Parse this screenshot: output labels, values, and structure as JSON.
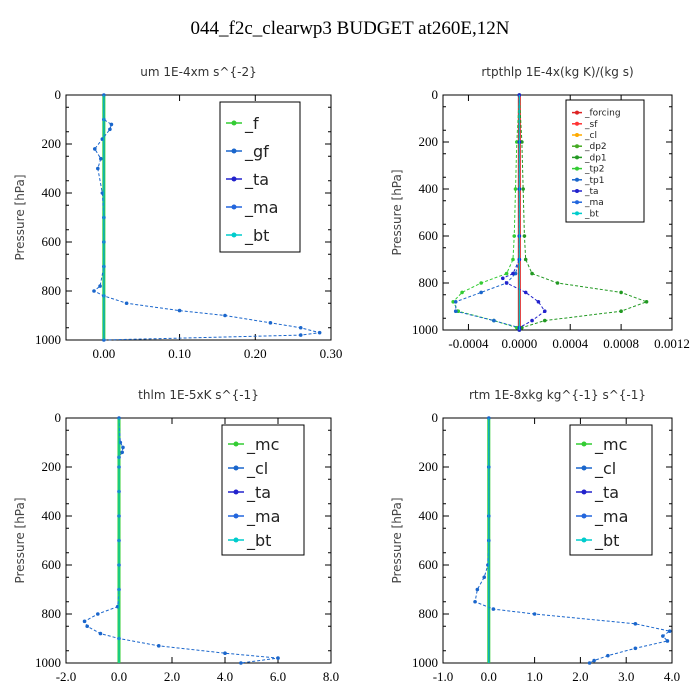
{
  "figure_title": "044_f2c_clearwp3  BUDGET at260E,12N",
  "chart_data": [
    {
      "type": "line",
      "title": "um  1E-4xm s^{-2}",
      "ylabel": "Pressure [hPa]",
      "xlim": [
        -0.05,
        0.3
      ],
      "ylim": [
        1000,
        0
      ],
      "xticks": [
        0.0,
        0.1,
        0.2,
        0.3
      ],
      "xtick_labels": [
        "0.00",
        "0.10",
        "0.20",
        "0.30"
      ],
      "yticks": [
        0,
        200,
        400,
        600,
        800,
        1000
      ],
      "ytick_labels": [
        "0",
        "200",
        "400",
        "600",
        "800",
        "1000"
      ],
      "legend": "top-right",
      "series": [
        {
          "name": "_f",
          "color": "#33cc33",
          "y": [
            0,
            100,
            200,
            300,
            400,
            500,
            600,
            700,
            800,
            900,
            1000
          ],
          "x": [
            0,
            0,
            0,
            0,
            0,
            0,
            0,
            0,
            0,
            0,
            0
          ]
        },
        {
          "name": "_gf",
          "color": "#1a66cc",
          "y": [
            0,
            100,
            120,
            140,
            180,
            220,
            260,
            300,
            400,
            500,
            600,
            700,
            780,
            800,
            820,
            850,
            880,
            900,
            930,
            950,
            970,
            980,
            1000
          ],
          "x": [
            0,
            0,
            0.01,
            0.008,
            -0.002,
            -0.012,
            -0.004,
            -0.008,
            -0.002,
            0,
            0,
            0,
            -0.005,
            -0.013,
            0.0,
            0.03,
            0.1,
            0.16,
            0.22,
            0.26,
            0.285,
            0.26,
            0.0
          ]
        },
        {
          "name": "_ta",
          "color": "#2222cc",
          "y": [
            0,
            100,
            200,
            300,
            400,
            500,
            600,
            700,
            800,
            900,
            1000
          ],
          "x": [
            0,
            0,
            0,
            0,
            0,
            0,
            0,
            0,
            0,
            0,
            0
          ]
        },
        {
          "name": "_ma",
          "color": "#2266dd",
          "y": [
            0,
            100,
            200,
            300,
            400,
            500,
            600,
            700,
            800,
            900,
            1000
          ],
          "x": [
            0,
            0,
            0,
            0,
            0,
            0,
            0,
            0,
            0,
            0,
            0
          ]
        },
        {
          "name": "_bt",
          "color": "#00cccc",
          "y": [
            0,
            100,
            200,
            300,
            400,
            500,
            600,
            700,
            800,
            900,
            1000
          ],
          "x": [
            0,
            0,
            0,
            0,
            0,
            0,
            0,
            0,
            0,
            0,
            0
          ]
        }
      ]
    },
    {
      "type": "line",
      "title": "rtpthlp  1E-4x(kg K)/(kg s)",
      "ylabel": "Pressure [hPa]",
      "xlim": [
        -0.0006,
        0.0012
      ],
      "ylim": [
        1000,
        0
      ],
      "xticks": [
        -0.0004,
        0.0,
        0.0004,
        0.0008,
        0.0012
      ],
      "xtick_labels": [
        "-0.0004",
        "0.0000",
        "0.0004",
        "0.0008",
        "0.0012"
      ],
      "yticks": [
        0,
        200,
        400,
        600,
        800,
        1000
      ],
      "ytick_labels": [
        "0",
        "200",
        "400",
        "600",
        "800",
        "1000"
      ],
      "legend": "top-right",
      "series": [
        {
          "name": "_forcing",
          "color": "#dd2222",
          "y": [
            0,
            200,
            400,
            600,
            800,
            1000
          ],
          "x": [
            0,
            0,
            0,
            0,
            0,
            0
          ]
        },
        {
          "name": "_sf",
          "color": "#ff3333",
          "y": [
            0,
            200,
            400,
            600,
            800,
            1000
          ],
          "x": [
            0,
            0,
            0,
            0,
            0,
            0
          ]
        },
        {
          "name": "_cl",
          "color": "#ffaa00",
          "y": [
            0,
            200,
            400,
            600,
            800,
            1000
          ],
          "x": [
            0,
            0,
            0,
            0,
            0,
            0
          ]
        },
        {
          "name": "_dp2",
          "color": "#44aa22",
          "y": [
            0,
            200,
            400,
            600,
            800,
            1000
          ],
          "x": [
            0,
            0,
            0,
            0,
            0,
            0
          ]
        },
        {
          "name": "_dp1",
          "color": "#229922",
          "y": [
            0,
            200,
            400,
            600,
            700,
            760,
            800,
            840,
            880,
            920,
            960,
            990,
            1000
          ],
          "x": [
            0,
            2e-05,
            3e-05,
            4e-05,
            5e-05,
            0.0001,
            0.0003,
            0.0008,
            0.001,
            0.0008,
            0.0002,
            2e-05,
            0
          ]
        },
        {
          "name": "_tp2",
          "color": "#33cc33",
          "y": [
            0,
            200,
            400,
            600,
            700,
            760,
            800,
            840,
            880,
            920,
            960,
            990,
            1000
          ],
          "x": [
            0,
            -2e-05,
            -3e-05,
            -4e-05,
            -5e-05,
            -0.0001,
            -0.0003,
            -0.00045,
            -0.00052,
            -0.00048,
            -0.0002,
            -2e-05,
            0
          ]
        },
        {
          "name": "_tp1",
          "color": "#1a66cc",
          "y": [
            0,
            200,
            400,
            600,
            700,
            760,
            800,
            840,
            880,
            920,
            960,
            990,
            1000
          ],
          "x": [
            0,
            0,
            0,
            0,
            0,
            -3e-05,
            -0.0001,
            -0.0003,
            -0.0005,
            -0.0005,
            -0.0002,
            0,
            0
          ]
        },
        {
          "name": "_ta",
          "color": "#2222cc",
          "y": [
            0,
            200,
            400,
            600,
            700,
            760,
            780,
            800,
            840,
            880,
            920,
            960,
            990,
            1000
          ],
          "x": [
            0,
            0,
            0,
            0,
            0,
            -5e-05,
            -0.00013,
            -0.0001,
            5e-05,
            0.00015,
            0.0002,
            0.0001,
            0,
            0
          ]
        },
        {
          "name": "_ma",
          "color": "#2266dd",
          "y": [
            0,
            200,
            400,
            600,
            800,
            1000
          ],
          "x": [
            0,
            0,
            0,
            0,
            0,
            0
          ]
        },
        {
          "name": "_bt",
          "color": "#00cccc",
          "y": [
            0,
            200,
            400,
            600,
            800,
            1000
          ],
          "x": [
            0,
            0,
            0,
            0,
            0,
            0
          ]
        }
      ]
    },
    {
      "type": "line",
      "title": "thlm  1E-5xK s^{-1}",
      "ylabel": "Pressure [hPa]",
      "xlim": [
        -2.0,
        8.0
      ],
      "ylim": [
        1000,
        0
      ],
      "xticks": [
        -2.0,
        0.0,
        2.0,
        4.0,
        6.0,
        8.0
      ],
      "xtick_labels": [
        "-2.0",
        "0.0",
        "2.0",
        "4.0",
        "6.0",
        "8.0"
      ],
      "yticks": [
        0,
        200,
        400,
        600,
        800,
        1000
      ],
      "ytick_labels": [
        "0",
        "200",
        "400",
        "600",
        "800",
        "1000"
      ],
      "legend": "top-right",
      "series": [
        {
          "name": "_mc",
          "color": "#33cc33",
          "y": [
            0,
            200,
            400,
            600,
            800,
            1000
          ],
          "x": [
            0,
            0,
            0,
            0,
            0,
            0
          ]
        },
        {
          "name": "_cl",
          "color": "#1a66cc",
          "y": [
            0,
            100,
            120,
            140,
            160,
            200,
            300,
            400,
            500,
            600,
            700,
            770,
            800,
            830,
            850,
            880,
            900,
            930,
            960,
            980,
            1000
          ],
          "x": [
            0,
            0.05,
            0.15,
            0.12,
            0.0,
            0.0,
            0.0,
            0.0,
            0.0,
            0.0,
            0.0,
            -0.05,
            -0.8,
            -1.3,
            -1.2,
            -0.7,
            0.0,
            1.5,
            4.0,
            6.0,
            4.6
          ]
        },
        {
          "name": "_ta",
          "color": "#2222cc",
          "y": [
            0,
            200,
            400,
            600,
            800,
            1000
          ],
          "x": [
            0,
            0,
            0,
            0,
            0,
            0
          ]
        },
        {
          "name": "_ma",
          "color": "#2266dd",
          "y": [
            0,
            200,
            400,
            600,
            800,
            1000
          ],
          "x": [
            0,
            0,
            0,
            0,
            0,
            0
          ]
        },
        {
          "name": "_bt",
          "color": "#00cccc",
          "y": [
            0,
            200,
            400,
            600,
            800,
            1000
          ],
          "x": [
            0,
            0,
            0,
            0,
            0,
            0
          ]
        }
      ]
    },
    {
      "type": "line",
      "title": "rtm  1E-8xkg kg^{-1} s^{-1}",
      "ylabel": "Pressure [hPa]",
      "xlim": [
        -1.0,
        4.0
      ],
      "ylim": [
        1000,
        0
      ],
      "xticks": [
        -1.0,
        0.0,
        1.0,
        2.0,
        3.0,
        4.0
      ],
      "xtick_labels": [
        "-1.0",
        "0.0",
        "1.0",
        "2.0",
        "3.0",
        "4.0"
      ],
      "yticks": [
        0,
        200,
        400,
        600,
        800,
        1000
      ],
      "ytick_labels": [
        "0",
        "200",
        "400",
        "600",
        "800",
        "1000"
      ],
      "legend": "top-right",
      "series": [
        {
          "name": "_mc",
          "color": "#33cc33",
          "y": [
            0,
            200,
            400,
            600,
            800,
            1000
          ],
          "x": [
            0,
            0,
            0,
            0,
            0,
            0
          ]
        },
        {
          "name": "_cl",
          "color": "#1a66cc",
          "y": [
            0,
            200,
            400,
            500,
            600,
            650,
            700,
            750,
            780,
            800,
            840,
            870,
            890,
            910,
            940,
            970,
            990,
            1000
          ],
          "x": [
            0,
            0,
            0,
            0,
            -0.02,
            -0.1,
            -0.25,
            -0.3,
            0.1,
            1.0,
            3.2,
            3.95,
            3.8,
            3.9,
            3.2,
            2.6,
            2.3,
            2.2
          ]
        },
        {
          "name": "_ta",
          "color": "#2222cc",
          "y": [
            0,
            200,
            400,
            600,
            800,
            1000
          ],
          "x": [
            0,
            0,
            0,
            0,
            0,
            0
          ]
        },
        {
          "name": "_ma",
          "color": "#2266dd",
          "y": [
            0,
            200,
            400,
            600,
            800,
            1000
          ],
          "x": [
            0,
            0,
            0,
            0,
            0,
            0
          ]
        },
        {
          "name": "_bt",
          "color": "#00cccc",
          "y": [
            0,
            200,
            400,
            600,
            800,
            1000
          ],
          "x": [
            0,
            0,
            0,
            0,
            0,
            0
          ]
        }
      ]
    }
  ]
}
